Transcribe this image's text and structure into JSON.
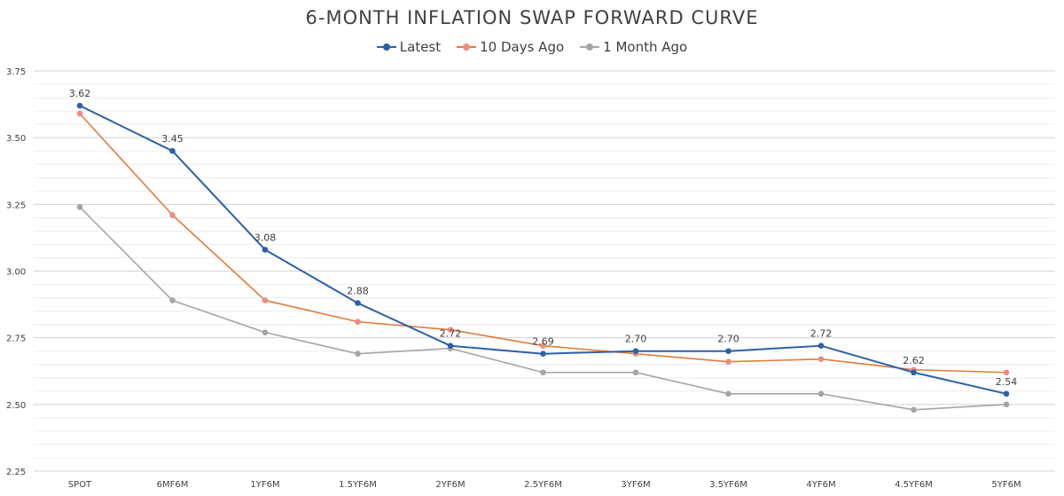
{
  "chart_data": {
    "type": "line",
    "title": "6-MONTH INFLATION SWAP FORWARD CURVE",
    "categories": [
      "SPOT",
      "6MF6M",
      "1YF6M",
      "1.5YF6M",
      "2YF6M",
      "2.5YF6M",
      "3YF6M",
      "3.5YF6M",
      "4YF6M",
      "4.5YF6M",
      "5YF6M"
    ],
    "ylim": [
      2.25,
      3.75
    ],
    "yticks": [
      "2.25",
      "2.50",
      "2.75",
      "3.00",
      "3.25",
      "3.50",
      "3.75"
    ],
    "grid": true,
    "legend_position": "top",
    "series": [
      {
        "name": "Latest",
        "color": "#2e5fa8",
        "values": [
          3.62,
          3.45,
          3.08,
          2.88,
          2.72,
          2.69,
          2.7,
          2.7,
          2.72,
          2.62,
          2.54
        ],
        "labels": [
          "3.62",
          "3.45",
          "3.08",
          "2.88",
          "2.72",
          "2.69",
          "2.70",
          "2.70",
          "2.72",
          "2.62",
          "2.54"
        ]
      },
      {
        "name": "10 Days Ago",
        "color": "#e07b39",
        "marker_color": "#f08a84",
        "values": [
          3.59,
          3.21,
          2.89,
          2.81,
          2.78,
          2.72,
          2.69,
          2.66,
          2.67,
          2.63,
          2.62
        ]
      },
      {
        "name": "1 Month Ago",
        "color": "#a5a5a5",
        "values": [
          3.24,
          2.89,
          2.77,
          2.69,
          2.71,
          2.62,
          2.62,
          2.54,
          2.54,
          2.48,
          2.5
        ]
      }
    ]
  }
}
